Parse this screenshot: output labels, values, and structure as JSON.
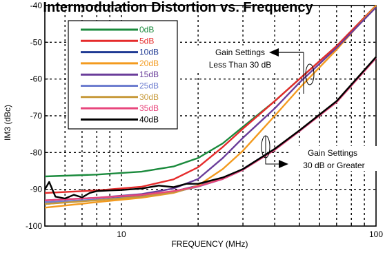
{
  "chart_data": {
    "type": "line",
    "title": "Intermodulation Distortion vs. Frequency",
    "xlabel": "FREQUENCY (MHz)",
    "ylabel": "IM3 (dBc)",
    "x_scale": "log",
    "xlim": [
      5,
      100
    ],
    "ylim": [
      -100,
      -40
    ],
    "grid": true,
    "x_ticks": [
      {
        "value": 10,
        "label": "10"
      },
      {
        "value": 100,
        "label": "100"
      }
    ],
    "y_ticks": [
      {
        "value": -40,
        "label": "-40"
      },
      {
        "value": -50,
        "label": "-50"
      },
      {
        "value": -60,
        "label": "-60"
      },
      {
        "value": -70,
        "label": "-70"
      },
      {
        "value": -80,
        "label": "-80"
      },
      {
        "value": -90,
        "label": "-90"
      },
      {
        "value": -100,
        "label": "-100"
      }
    ],
    "legend_position": "top-left",
    "series": [
      {
        "name": "0dB",
        "color": "#1a8a3c",
        "x": [
          5,
          8,
          12,
          16,
          20,
          25,
          30,
          40,
          50,
          70,
          100
        ],
        "y": [
          -86.5,
          -86,
          -85.2,
          -83.8,
          -81.5,
          -77.5,
          -73,
          -66,
          -60,
          -51,
          -40
        ]
      },
      {
        "name": "5dB",
        "color": "#e52b2b",
        "x": [
          5,
          8,
          12,
          16,
          20,
          25,
          30,
          40,
          50,
          70,
          100
        ],
        "y": [
          -91,
          -90.3,
          -89.3,
          -87.3,
          -84,
          -78.5,
          -73.5,
          -66,
          -60,
          -51,
          -40
        ]
      },
      {
        "name": "10dB",
        "color": "#1f3a93",
        "x": [
          5,
          8,
          12,
          16,
          20,
          25,
          30,
          40,
          50,
          70,
          100
        ],
        "y": [
          -94,
          -92.8,
          -91.8,
          -90.6,
          -89,
          -87,
          -84.5,
          -79,
          -74,
          -66,
          -54
        ]
      },
      {
        "name": "20dB",
        "color": "#f39a1e",
        "x": [
          5,
          8,
          12,
          16,
          20,
          25,
          30,
          40,
          50,
          70,
          100
        ],
        "y": [
          -95,
          -93.5,
          -92.3,
          -91,
          -89,
          -84.5,
          -79.5,
          -70,
          -62.5,
          -52,
          -40
        ]
      },
      {
        "name": "15dB",
        "color": "#6a3d9a",
        "x": [
          5,
          8,
          12,
          16,
          20,
          25,
          30,
          40,
          50,
          70,
          100
        ],
        "y": [
          -93,
          -92.3,
          -91.3,
          -89.8,
          -87.2,
          -81.5,
          -76,
          -68,
          -61,
          -51.5,
          -40.5
        ]
      },
      {
        "name": "25dB",
        "color": "#6f7fd0",
        "x": [
          5,
          8,
          12,
          16,
          20,
          25,
          30,
          40,
          50,
          70,
          100
        ],
        "y": [
          -93.5,
          -92.8,
          -92,
          -90.8,
          -89.3,
          -87.2,
          -84.7,
          -79.2,
          -74.2,
          -66.2,
          -54.2
        ]
      },
      {
        "name": "30dB",
        "color": "#c79a3b",
        "x": [
          5,
          8,
          12,
          16,
          20,
          25,
          30,
          40,
          50,
          70,
          100
        ],
        "y": [
          -94,
          -93,
          -92,
          -90.8,
          -89.2,
          -87,
          -84.6,
          -79,
          -74,
          -66,
          -54
        ]
      },
      {
        "name": "35dB",
        "color": "#e8467c",
        "x": [
          5,
          8,
          12,
          16,
          20,
          25,
          30,
          40,
          50,
          70,
          100
        ],
        "y": [
          -93,
          -92.3,
          -91.5,
          -90.5,
          -89.2,
          -87.2,
          -84.7,
          -79.3,
          -74.2,
          -66.3,
          -54.3
        ]
      },
      {
        "name": "40dB",
        "color": "#000000",
        "x": [
          5,
          5.2,
          5.5,
          6,
          6.5,
          7,
          7.5,
          8,
          9,
          10,
          12,
          14,
          16,
          18,
          20,
          25,
          30,
          40,
          50,
          70,
          100
        ],
        "y": [
          -90,
          -88,
          -92,
          -92.5,
          -91.5,
          -92.2,
          -91,
          -90.5,
          -90.3,
          -90.2,
          -89.8,
          -89,
          -89.4,
          -88.5,
          -88.5,
          -86.8,
          -84.5,
          -79,
          -74,
          -66,
          -54
        ]
      }
    ],
    "annotations": [
      {
        "line1": "Gain Settings",
        "line2": "Less Than 30 dB"
      },
      {
        "line1": "Gain Settings",
        "line2": "30 dB or Greater"
      }
    ]
  }
}
